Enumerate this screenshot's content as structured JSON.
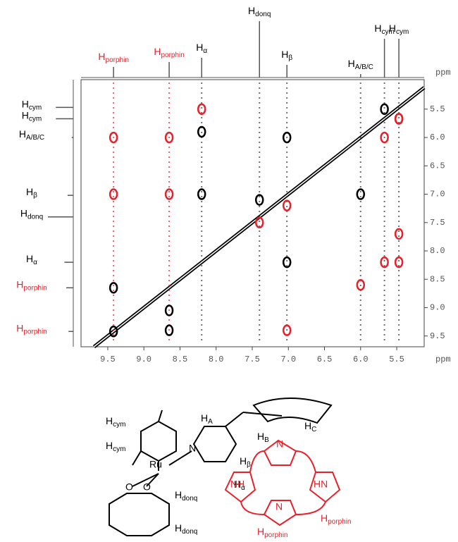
{
  "chart_data": {
    "type": "nmr2d",
    "x_label": "ppm",
    "y_label": "ppm",
    "xlim": [
      9.87,
      5.12
    ],
    "ylim": [
      4.98,
      9.69
    ],
    "xticks": [
      9.5,
      {
        "value": 9,
        "label": "9.0"
      },
      8.5,
      {
        "value": 8,
        "label": "8.0"
      },
      7.5,
      {
        "value": 7,
        "label": "7.0"
      },
      6.5,
      {
        "value": 6,
        "label": "6.0"
      },
      5.5
    ],
    "yticks": [
      5.5,
      {
        "value": 6,
        "label": "6.0"
      },
      6.5,
      {
        "value": 7,
        "label": "7.0"
      },
      7.5,
      {
        "value": 8,
        "label": "8.0"
      },
      8.5,
      {
        "value": 9,
        "label": "9.0"
      },
      9.5
    ],
    "signals": [
      {
        "main": "H",
        "sub": "porphin",
        "color": "#e8202a",
        "ppm": 9.42,
        "height": 15
      },
      {
        "main": "H",
        "sub": "porphin",
        "color": "#e8202a",
        "ppm": 8.65,
        "height": 22
      },
      {
        "main": "H",
        "sub": "α",
        "color": "#000000",
        "ppm": 8.2,
        "height": 28
      },
      {
        "main": "H",
        "sub": "donq",
        "color": "#000000",
        "ppm": 7.4,
        "height": 80
      },
      {
        "main": "H",
        "sub": "β",
        "color": "#000000",
        "ppm": 7.02,
        "height": 18
      },
      {
        "main": "H",
        "sub": "A/B/C",
        "color": "#000000",
        "ppm": 6.0,
        "height": 5
      },
      {
        "main": "H",
        "sub": "cym",
        "color": "#000000",
        "ppm": 5.67,
        "height": 55
      },
      {
        "main": "H",
        "sub": "cym",
        "color": "#000000",
        "ppm": 5.47,
        "height": 55
      }
    ],
    "series": [
      {
        "color": "#000000",
        "x": [
          9.42,
          8.65,
          9.42,
          8.2,
          7.02,
          7.02,
          6.0,
          8.2,
          7.4,
          5.67,
          5.47,
          8.65
        ],
        "y": [
          9.42,
          9.4,
          8.65,
          7.0,
          8.2,
          6.0,
          7.0,
          5.9,
          7.1,
          5.5,
          5.67,
          9.05
        ]
      },
      {
        "color": "#e8202a",
        "x": [
          9.42,
          8.65,
          9.42,
          8.65,
          8.2,
          7.4,
          7.02,
          5.67,
          5.47,
          5.67,
          5.47,
          6.0,
          7.02,
          5.47
        ],
        "y": [
          6.0,
          6.0,
          7.0,
          7.0,
          5.5,
          7.5,
          7.2,
          6.0,
          5.67,
          8.2,
          8.2,
          8.6,
          9.4,
          7.7
        ]
      }
    ]
  },
  "structure": {
    "h_cym_1": {
      "main": "H",
      "sub": "cym"
    },
    "h_cym_2": {
      "main": "H",
      "sub": "cym"
    },
    "h_a": {
      "main": "H",
      "sub": "A"
    },
    "h_b": {
      "main": "H",
      "sub": "B"
    },
    "h_c": {
      "main": "H",
      "sub": "C"
    },
    "h_beta": {
      "main": "H",
      "sub": "β"
    },
    "h_alpha": {
      "main": "H",
      "sub": "α"
    },
    "n_pyridine": "N",
    "ru": "Ru",
    "o_1": "O",
    "o_2": "O",
    "h_donq_1": {
      "main": "H",
      "sub": "donq"
    },
    "h_donq_2": {
      "main": "H",
      "sub": "donq"
    },
    "n_top": "N",
    "nh": "NH",
    "hn": "HN",
    "n_bottom": "N",
    "h_porphin_1": {
      "main": "H",
      "sub": "porphin"
    },
    "h_porphin_2": {
      "main": "H",
      "sub": "porphin"
    }
  }
}
